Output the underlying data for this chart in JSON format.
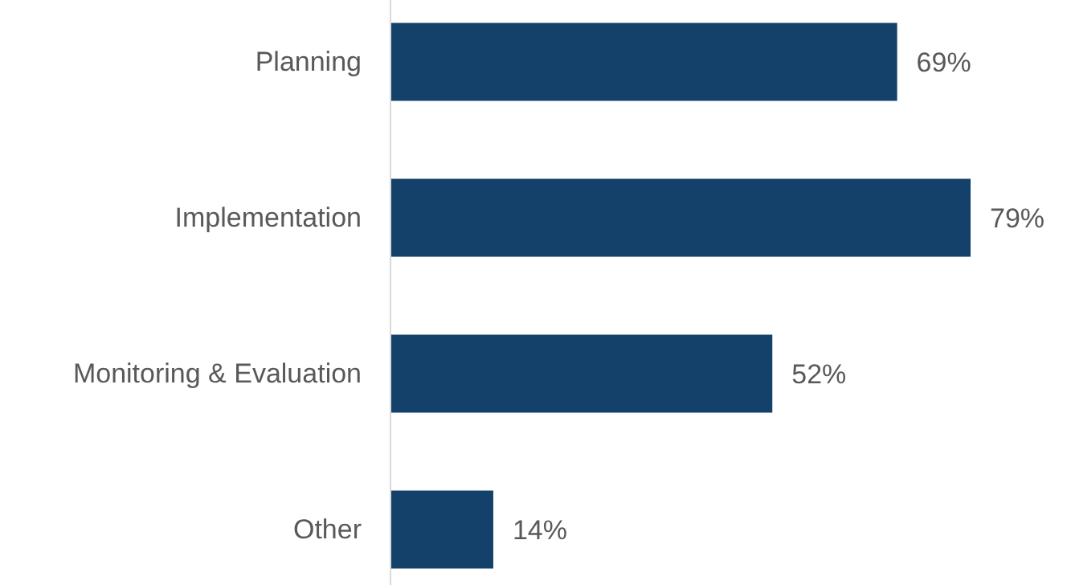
{
  "chart_data": {
    "type": "bar",
    "orientation": "horizontal",
    "categories": [
      "Planning",
      "Implementation",
      "Monitoring & Evaluation",
      "Other"
    ],
    "values": [
      69,
      79,
      52,
      14
    ],
    "value_labels": [
      "69%",
      "79%",
      "52%",
      "14%"
    ],
    "color": "#14416a",
    "relative": false
  }
}
